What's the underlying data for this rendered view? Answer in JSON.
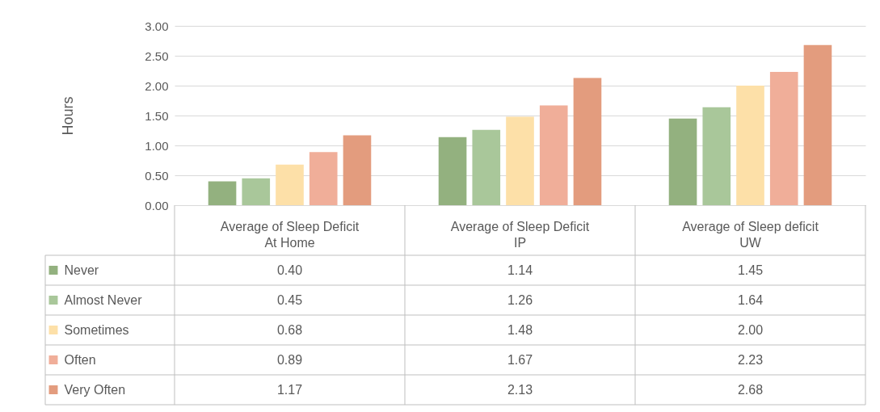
{
  "chart_data": {
    "type": "bar",
    "ylabel": "Hours",
    "categories": [
      "Average of Sleep Deficit At Home",
      "Average of Sleep Deficit IP",
      "Average of Sleep deficit UW"
    ],
    "series": [
      {
        "name": "Never",
        "color": "#93b17f",
        "values": [
          0.4,
          1.14,
          1.45
        ],
        "value_labels": [
          "0.40",
          "1.14",
          "1.45"
        ]
      },
      {
        "name": "Almost Never",
        "color": "#a9c79a",
        "values": [
          0.45,
          1.26,
          1.64
        ],
        "value_labels": [
          "0.45",
          "1.26",
          "1.64"
        ]
      },
      {
        "name": "Sometimes",
        "color": "#fde0a8",
        "values": [
          0.68,
          1.48,
          2.0
        ],
        "value_labels": [
          "0.68",
          "1.48",
          "2.00"
        ]
      },
      {
        "name": "Often",
        "color": "#f0ae99",
        "values": [
          0.89,
          1.67,
          2.23
        ],
        "value_labels": [
          "0.89",
          "1.67",
          "2.23"
        ]
      },
      {
        "name": "Very Often",
        "color": "#e39c7e",
        "values": [
          1.17,
          2.13,
          2.68
        ],
        "value_labels": [
          "1.17",
          "2.13",
          "2.68"
        ]
      }
    ],
    "ylim": [
      0,
      3
    ],
    "yticks": [
      {
        "value": 0,
        "label": "0.00"
      },
      {
        "value": 0.5,
        "label": "0.50"
      },
      {
        "value": 1,
        "label": "1.00"
      },
      {
        "value": 1.5,
        "label": "1.50"
      },
      {
        "value": 2,
        "label": "2.00"
      },
      {
        "value": 2.5,
        "label": "2.50"
      },
      {
        "value": 3,
        "label": "3.00"
      }
    ],
    "grid": "y",
    "legend": "bottom"
  }
}
